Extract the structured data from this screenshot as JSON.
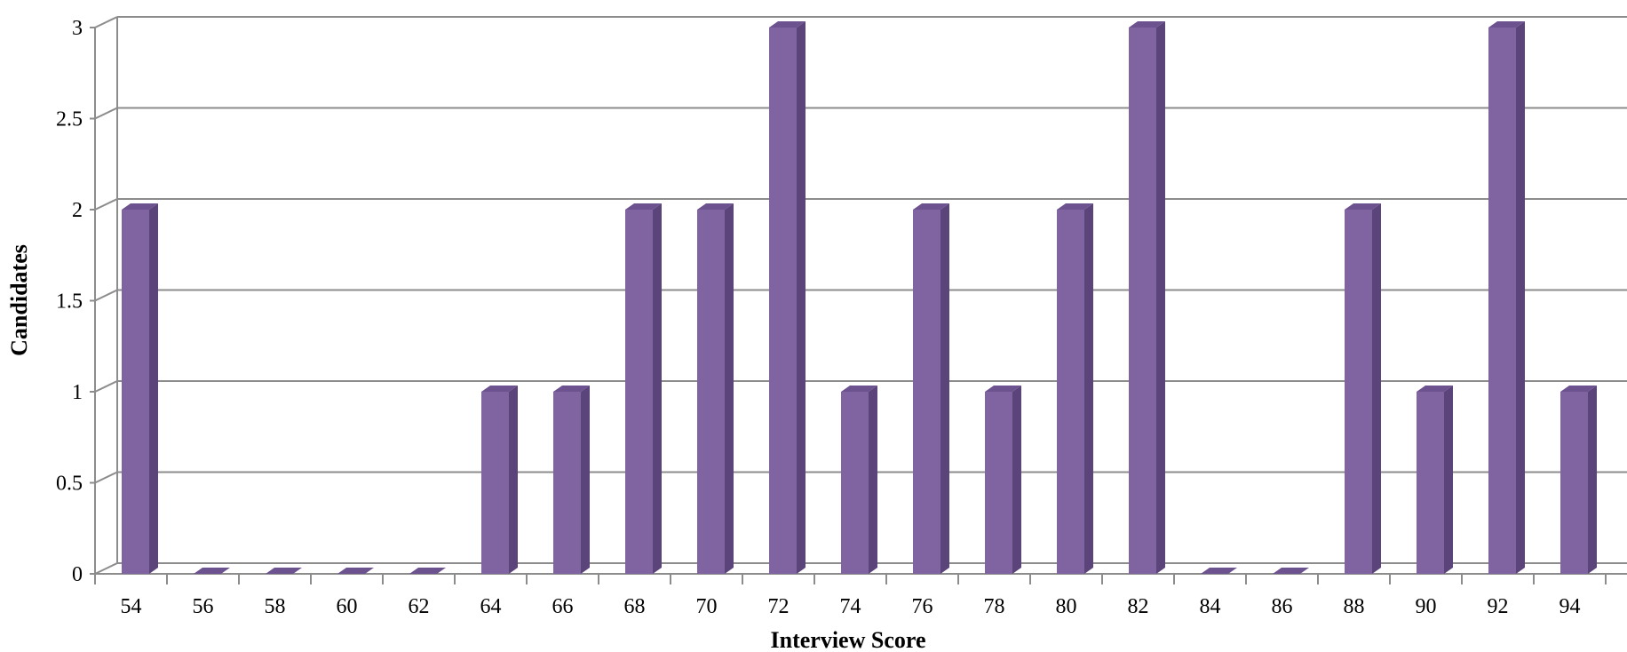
{
  "chart_data": {
    "type": "bar",
    "title": "",
    "xlabel": "Interview Score",
    "ylabel": "Candidates",
    "categories": [
      "54",
      "56",
      "58",
      "60",
      "62",
      "64",
      "66",
      "68",
      "70",
      "72",
      "74",
      "76",
      "78",
      "80",
      "82",
      "84",
      "86",
      "88",
      "90",
      "92",
      "94"
    ],
    "values": [
      2,
      0,
      0,
      0,
      0,
      1,
      1,
      2,
      2,
      3,
      1,
      2,
      1,
      2,
      3,
      0,
      0,
      2,
      1,
      3,
      1
    ],
    "ylim": [
      0,
      3
    ],
    "yticks": [
      "0",
      "0.5",
      "1",
      "1.5",
      "2",
      "2.5",
      "3"
    ],
    "grid": true,
    "style": "3d-column",
    "colors": {
      "bar_front": "#8064A2",
      "bar_side": "#5A4479",
      "bar_top": "#6D5290",
      "grid": "#8C8C8C"
    }
  }
}
